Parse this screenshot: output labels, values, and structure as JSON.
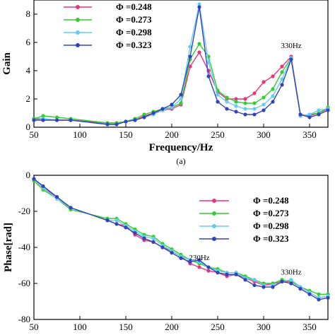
{
  "chart_data": [
    {
      "type": "line",
      "xlabel": "Frequency/Hz",
      "ylabel": "Gain",
      "xlim": [
        50,
        370
      ],
      "ylim": [
        0,
        9
      ],
      "xticks": [
        50,
        100,
        150,
        200,
        250,
        300,
        350
      ],
      "yticks": [
        0,
        2,
        4,
        6,
        8
      ],
      "sublabel": "(a)",
      "grid": false,
      "legend_position": "top-left",
      "annotations": [
        {
          "text": "330Hz",
          "x": 330,
          "y": 5.6
        }
      ],
      "x": [
        50,
        60,
        75,
        90,
        130,
        140,
        150,
        160,
        170,
        180,
        190,
        200,
        210,
        220,
        230,
        240,
        250,
        260,
        270,
        280,
        290,
        300,
        310,
        320,
        330,
        340,
        350,
        360,
        370
      ],
      "series": [
        {
          "name": "Φ =0.248",
          "color": "#e8357f",
          "values": [
            0.6,
            0.6,
            0.5,
            0.5,
            0.3,
            0.3,
            0.4,
            0.5,
            0.8,
            1.0,
            1.2,
            1.3,
            1.6,
            4.3,
            5.3,
            4.0,
            2.5,
            2.0,
            2.0,
            2.0,
            2.4,
            3.2,
            3.6,
            4.3,
            5.0,
            0.9,
            0.8,
            1.0,
            1.3
          ]
        },
        {
          "name": "Φ =0.273",
          "color": "#33cc33",
          "values": [
            0.6,
            0.8,
            0.7,
            0.6,
            0.3,
            0.3,
            0.4,
            0.6,
            0.9,
            1.1,
            1.3,
            1.4,
            1.7,
            4.8,
            5.9,
            5.0,
            2.6,
            2.1,
            1.8,
            1.7,
            1.7,
            2.1,
            2.7,
            3.9,
            4.9,
            0.8,
            0.9,
            1.0,
            1.4
          ]
        },
        {
          "name": "Φ =0.298",
          "color": "#66ccee",
          "values": [
            0.5,
            0.6,
            0.5,
            0.5,
            0.2,
            0.2,
            0.4,
            0.5,
            0.7,
            0.9,
            1.2,
            1.4,
            2.0,
            5.7,
            8.7,
            4.6,
            2.3,
            1.8,
            1.5,
            1.3,
            1.3,
            1.6,
            2.2,
            3.4,
            4.9,
            0.8,
            0.9,
            1.2,
            1.3
          ]
        },
        {
          "name": "Φ =0.323",
          "color": "#3344bb",
          "values": [
            0.5,
            0.5,
            0.5,
            0.5,
            0.2,
            0.2,
            0.4,
            0.5,
            0.7,
            1.0,
            1.3,
            1.6,
            2.3,
            5.0,
            8.5,
            3.6,
            1.8,
            1.3,
            1.1,
            0.9,
            0.9,
            1.2,
            1.8,
            3.0,
            4.8,
            0.9,
            0.7,
            0.9,
            1.2
          ]
        }
      ]
    },
    {
      "type": "line",
      "xlabel": "",
      "ylabel": "Phase[rad]",
      "xlim": [
        50,
        370
      ],
      "ylim": [
        -80,
        0
      ],
      "xticks": [
        50,
        100,
        150,
        200,
        250,
        300,
        350
      ],
      "yticks": [
        0,
        -20,
        -40,
        -60,
        -80
      ],
      "grid": false,
      "legend_position": "top-right",
      "annotations": [
        {
          "text": "230Hz",
          "x": 230,
          "y": -47
        },
        {
          "text": "330Hz",
          "x": 330,
          "y": -55
        }
      ],
      "x": [
        50,
        60,
        75,
        90,
        130,
        140,
        150,
        160,
        170,
        180,
        190,
        200,
        210,
        220,
        230,
        240,
        250,
        260,
        270,
        280,
        290,
        300,
        310,
        320,
        330,
        340,
        350,
        360,
        370
      ],
      "series": [
        {
          "name": "Φ =0.248",
          "color": "#e8357f",
          "values": [
            -2,
            -7,
            -12,
            -18,
            -25,
            -27,
            -28,
            -33,
            -36,
            -37,
            -40,
            -42,
            -45,
            -49,
            -51,
            -53,
            -54,
            -56,
            -55,
            -57,
            -59,
            -61,
            -60,
            -59,
            -59,
            -62,
            -65,
            -68,
            -67
          ]
        },
        {
          "name": "Φ =0.273",
          "color": "#33cc33",
          "values": [
            -3,
            -8,
            -13,
            -19,
            -24,
            -24,
            -27,
            -30,
            -33,
            -34,
            -38,
            -41,
            -44,
            -47,
            -49,
            -51,
            -52,
            -54,
            -54,
            -56,
            -58,
            -60,
            -60,
            -58,
            -59,
            -62,
            -64,
            -66,
            -66
          ]
        },
        {
          "name": "Φ =0.298",
          "color": "#66ccee",
          "values": [
            -2,
            -7,
            -13,
            -18,
            -25,
            -25,
            -28,
            -31,
            -34,
            -35,
            -39,
            -42,
            -45,
            -47,
            -48,
            -51,
            -53,
            -54,
            -54,
            -57,
            -58,
            -61,
            -61,
            -59,
            -58,
            -62,
            -65,
            -68,
            -67
          ]
        },
        {
          "name": "Φ =0.323",
          "color": "#3344bb",
          "values": [
            -2,
            -6,
            -12,
            -18,
            -25,
            -27,
            -29,
            -32,
            -35,
            -37,
            -40,
            -43,
            -46,
            -48,
            -47,
            -51,
            -54,
            -55,
            -55,
            -58,
            -61,
            -62,
            -62,
            -59,
            -60,
            -63,
            -66,
            -69,
            -68
          ]
        }
      ]
    }
  ]
}
